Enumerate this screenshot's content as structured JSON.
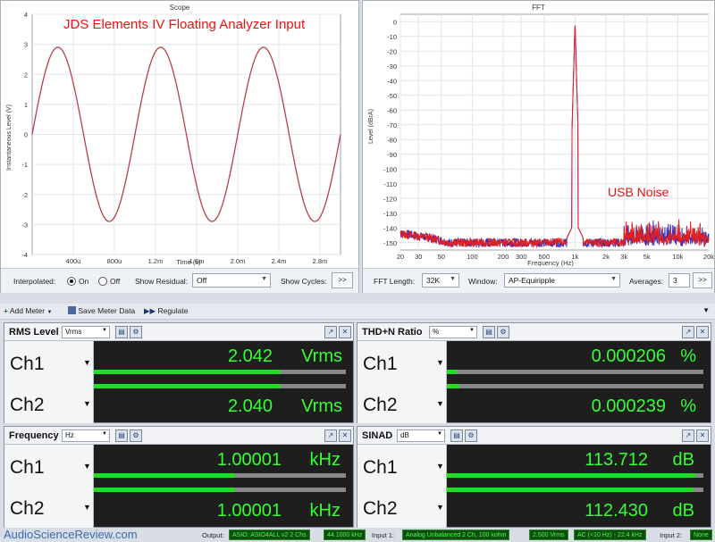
{
  "scope": {
    "title": "Scope",
    "annotation": "JDS Elements IV Floating Analyzer Input",
    "ylabel": "Instantaneous Level (V)",
    "xlabel": "Time (s)",
    "yticks": [
      "4",
      "3",
      "2",
      "1",
      "0",
      "-1",
      "-2",
      "-3",
      "-4"
    ],
    "xticks": [
      "400u",
      "800u",
      "1.2m",
      "1.6m",
      "2.0m",
      "2.4m",
      "2.8m"
    ],
    "controls": {
      "interpolated_label": "Interpolated:",
      "on_label": "On",
      "off_label": "Off",
      "show_residual_label": "Show Residual:",
      "show_residual_value": "Off",
      "show_cycles_label": "Show Cycles:",
      "more_button": ">>"
    }
  },
  "fft": {
    "title": "FFT",
    "annotation": "USB Noise",
    "ylabel": "Level (dBrA)",
    "xlabel": "Frequency (Hz)",
    "yticks": [
      "0",
      "-10",
      "-20",
      "-30",
      "-40",
      "-50",
      "-60",
      "-70",
      "-80",
      "-90",
      "-100",
      "-110",
      "-120",
      "-130",
      "-140",
      "-150"
    ],
    "xticks": [
      "20",
      "30",
      "50",
      "100",
      "200",
      "300",
      "500",
      "1k",
      "2k",
      "3k",
      "5k",
      "10k",
      "20k"
    ],
    "controls": {
      "fft_length_label": "FFT Length:",
      "fft_length_value": "32K",
      "window_label": "Window:",
      "window_value": "AP-Equiripple",
      "averages_label": "Averages:",
      "averages_value": "3",
      "more_button": ">>"
    }
  },
  "toolbar": {
    "add_meter": "Add Meter",
    "save_meter_data": "Save Meter Data",
    "regulate": "Regulate"
  },
  "meters": {
    "rms": {
      "title": "RMS Level",
      "unit": "Vrms",
      "ch1": {
        "label": "Ch1",
        "value": "2.042",
        "unit": "Vrms",
        "level": 0.74
      },
      "ch2": {
        "label": "Ch2",
        "value": "2.040",
        "unit": "Vrms",
        "level": 0.74
      }
    },
    "thdn": {
      "title": "THD+N Ratio",
      "unit": "%",
      "ch1": {
        "label": "Ch1",
        "value": "0.000206",
        "unit": "%",
        "level": 0.04
      },
      "ch2": {
        "label": "Ch2",
        "value": "0.000239",
        "unit": "%",
        "level": 0.05
      }
    },
    "freq": {
      "title": "Frequency",
      "unit": "Hz",
      "ch1": {
        "label": "Ch1",
        "value": "1.00001",
        "unit": "kHz",
        "level": 0.56
      },
      "ch2": {
        "label": "Ch2",
        "value": "1.00001",
        "unit": "kHz",
        "level": 0.56
      }
    },
    "sinad": {
      "title": "SINAD",
      "unit": "dB",
      "ch1": {
        "label": "Ch1",
        "value": "113.712",
        "unit": "dB",
        "level": 0.97
      },
      "ch2": {
        "label": "Ch2",
        "value": "112.430",
        "unit": "dB",
        "level": 0.96
      }
    }
  },
  "status": {
    "watermark": "AudioScienceReview.com",
    "output_label": "Output:",
    "output_device": "ASIO: ASIO4ALL v2 2 Chs",
    "output_rate": "44.1000 kHz",
    "input1_label": "Input 1:",
    "input1_device": "Analog Unbalanced 2 Ch, 100 kohm",
    "input1_range": "2.500 Vrms",
    "input1_filter": "AC (<10 Hz) - 22.4 kHz",
    "input2_label": "Input 2:",
    "input2_value": "None"
  },
  "chart_data": [
    {
      "type": "line",
      "title": "Scope",
      "xlabel": "Time (s)",
      "ylabel": "Instantaneous Level (V)",
      "xlim": [
        0,
        0.003
      ],
      "ylim": [
        -4,
        4
      ],
      "grid": true,
      "series": [
        {
          "function": "sine",
          "amplitude_v": 2.9,
          "frequency_hz": 1000,
          "color": "#b8404a"
        }
      ]
    },
    {
      "type": "line",
      "title": "FFT",
      "xlabel": "Frequency (Hz)",
      "ylabel": "Level (dBrA)",
      "xscale": "log",
      "xlim": [
        20,
        20000
      ],
      "ylim": [
        -155,
        5
      ],
      "grid": true,
      "series": [
        {
          "color": "#e02020",
          "fundamental_hz": 1000,
          "fundamental_db": 0,
          "noise_floor_db": -150
        },
        {
          "color": "#3030c0",
          "fundamental_hz": 1000,
          "fundamental_db": 0,
          "noise_floor_db": -150
        }
      ]
    }
  ]
}
